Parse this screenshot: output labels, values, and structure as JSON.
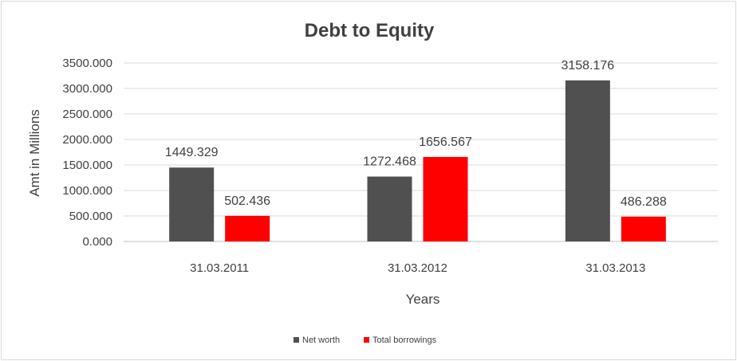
{
  "chart_data": {
    "type": "bar",
    "title": "Debt to Equity",
    "xlabel": "Years",
    "ylabel": "Amt in Millions",
    "categories": [
      "31.03.2011",
      "31.03.2012",
      "31.03.2013"
    ],
    "series": [
      {
        "name": "Net worth",
        "color": "#505050",
        "values": [
          1449.329,
          1272.468,
          3158.176
        ],
        "labels": [
          "1449.329",
          "1272.468",
          "3158.176"
        ]
      },
      {
        "name": "Total borrowings",
        "color": "#ff0000",
        "values": [
          502.436,
          1656.567,
          486.288
        ],
        "labels": [
          "502.436",
          "1656.567",
          "486.288"
        ]
      }
    ],
    "ylim": [
      0,
      3500
    ],
    "yticks": [
      "0.000",
      "500.000",
      "1000.000",
      "1500.000",
      "2000.000",
      "2500.000",
      "3000.000",
      "3500.000"
    ],
    "grid": true,
    "legend_position": "bottom"
  }
}
